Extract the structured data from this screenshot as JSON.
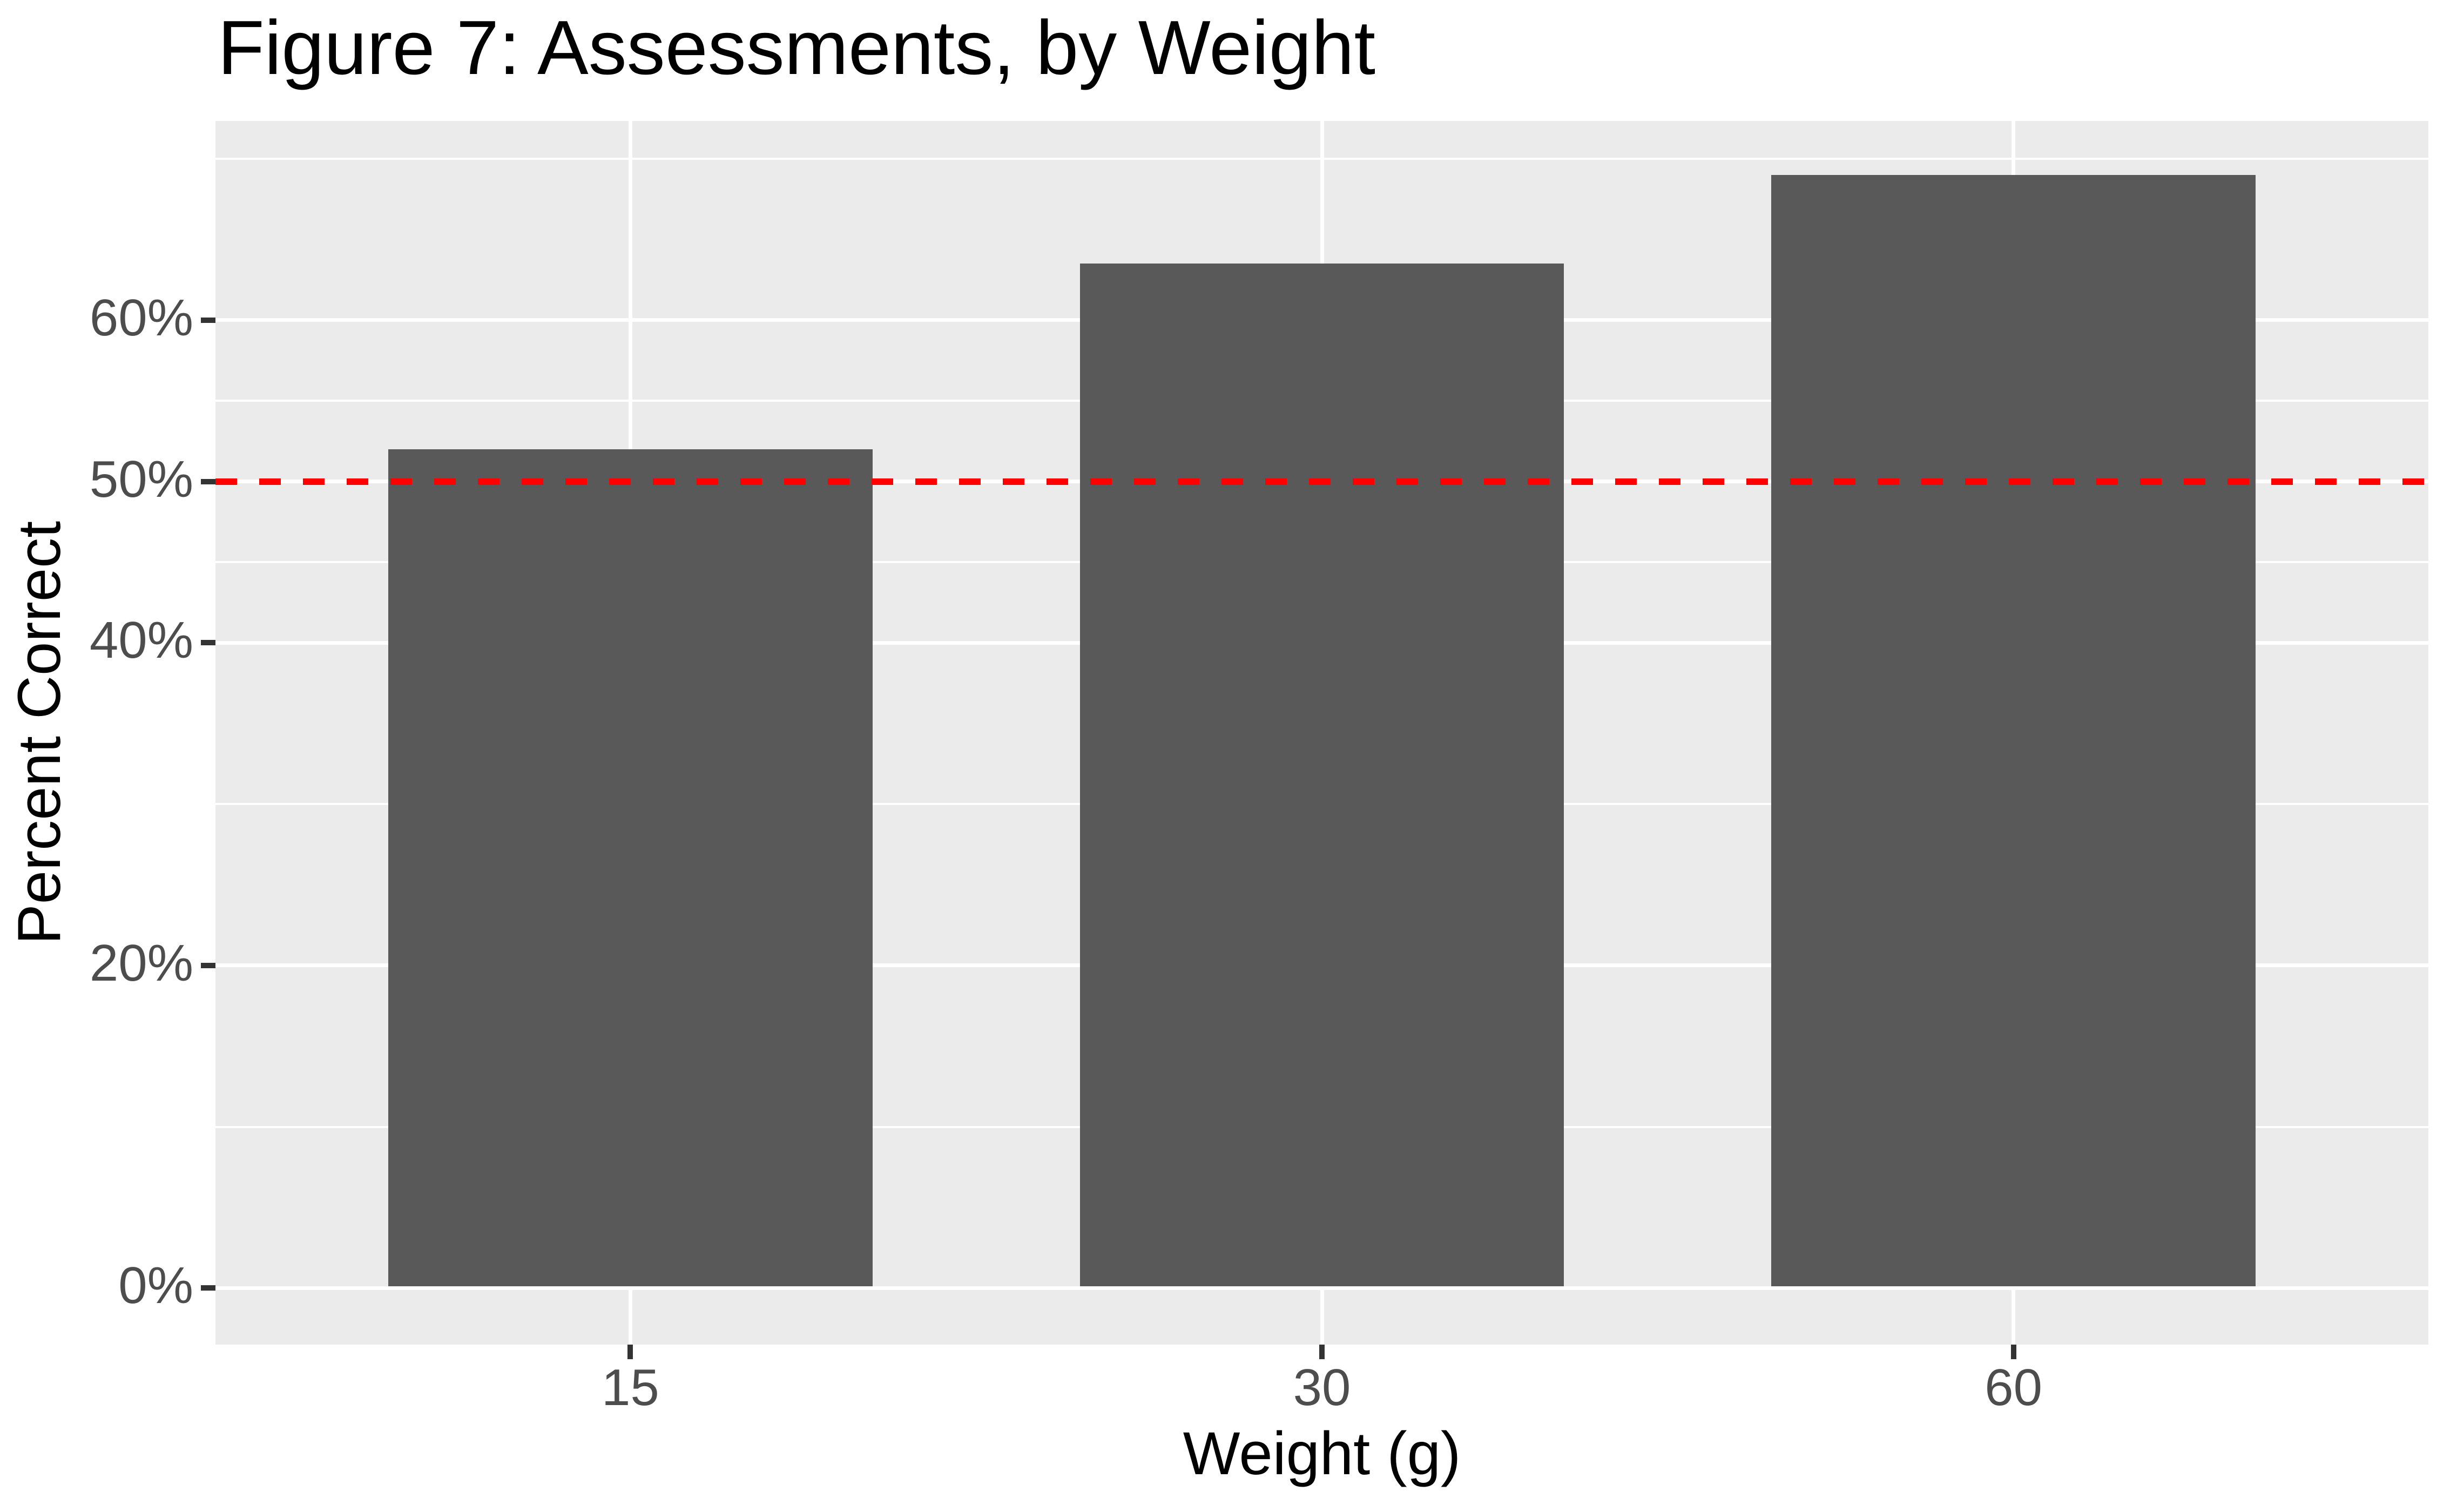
{
  "figure": {
    "title": "Figure 7: Assessments, by Weight"
  },
  "chart_data": {
    "type": "bar",
    "title": "Figure 7: Assessments, by Weight",
    "categories": [
      "15",
      "30",
      "60"
    ],
    "values": [
      52,
      63.5,
      69
    ],
    "xlabel": "Weight (g)",
    "ylabel": "Percent Correct",
    "ylim": [
      -3.5,
      72.35
    ],
    "y_major_ticks": [
      {
        "value": 0,
        "label": "0%"
      },
      {
        "value": 20,
        "label": "20%"
      },
      {
        "value": 40,
        "label": "40%"
      },
      {
        "value": 50,
        "label": "50%"
      },
      {
        "value": 60,
        "label": "60%"
      }
    ],
    "y_minor_gridlines": [
      10,
      30,
      45,
      55,
      70
    ],
    "reference_line": {
      "value": 50,
      "style": "dashed",
      "color": "#FF0000"
    },
    "legend": "none",
    "grid": "on",
    "colors": {
      "bar_fill": "#595959",
      "panel_background": "#EBEBEB",
      "gridline": "#FFFFFF",
      "tick_label": "#4D4D4D",
      "tick_mark": "#333333",
      "reference": "#FF0000",
      "title_text": "#000000"
    }
  }
}
